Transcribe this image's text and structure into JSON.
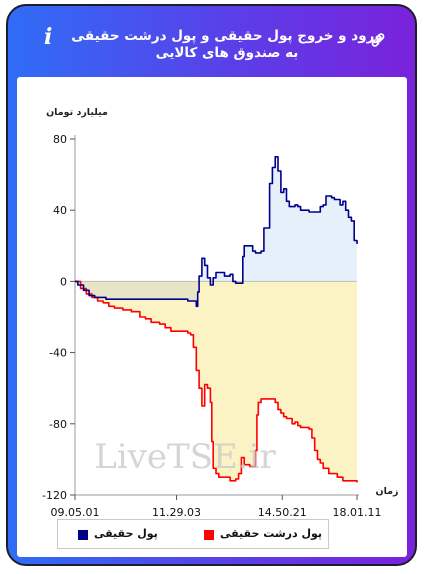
{
  "header": {
    "title": "ورود و خروج پول حقیقی و پول درشت حقیقی به صندوق های کالایی",
    "info_glyph": "i",
    "icons": [
      "info-icon",
      "link-icon"
    ]
  },
  "watermark": "LiveTSE.ir",
  "chart_data": {
    "type": "line",
    "ylabel": "میلیارد تومان",
    "xlabel": "زمان",
    "ylim": [
      -120,
      80
    ],
    "yticks": [
      80,
      40,
      0,
      -40,
      -80,
      -120
    ],
    "xlim": [
      0,
      100
    ],
    "xticks": [
      {
        "pos": 0,
        "label": "09.05.01"
      },
      {
        "pos": 36,
        "label": "11.29.03"
      },
      {
        "pos": 73.5,
        "label": "14.50.21"
      },
      {
        "pos": 100,
        "label": "18.01.11"
      }
    ],
    "legend_position": "bottom",
    "series": [
      {
        "name": "پول حقیقی",
        "color": "#00008b",
        "fill_positive": "#e6f0fa",
        "fill_negative": "#e8e4c6",
        "points": [
          [
            0,
            0
          ],
          [
            1,
            -2
          ],
          [
            3,
            -5
          ],
          [
            5,
            -8
          ],
          [
            7,
            -9
          ],
          [
            11,
            -10
          ],
          [
            16,
            -10
          ],
          [
            21,
            -10
          ],
          [
            26,
            -10
          ],
          [
            29,
            -10
          ],
          [
            33,
            -10
          ],
          [
            37,
            -10
          ],
          [
            40,
            -11
          ],
          [
            42,
            -11
          ],
          [
            43,
            -14
          ],
          [
            43.5,
            -6
          ],
          [
            44,
            3
          ],
          [
            45,
            13
          ],
          [
            46,
            9
          ],
          [
            47,
            2
          ],
          [
            48,
            -2
          ],
          [
            49,
            2
          ],
          [
            50,
            5
          ],
          [
            53,
            3
          ],
          [
            55,
            4
          ],
          [
            56,
            0
          ],
          [
            57,
            -1
          ],
          [
            58,
            -1
          ],
          [
            59,
            -1
          ],
          [
            59.5,
            14
          ],
          [
            60,
            20
          ],
          [
            62,
            20
          ],
          [
            63,
            17
          ],
          [
            64,
            16
          ],
          [
            66,
            17
          ],
          [
            67,
            30
          ],
          [
            69,
            55
          ],
          [
            70,
            64
          ],
          [
            71,
            70
          ],
          [
            72,
            62
          ],
          [
            73,
            50
          ],
          [
            74,
            52
          ],
          [
            75,
            45
          ],
          [
            76,
            42
          ],
          [
            78,
            43
          ],
          [
            79,
            42
          ],
          [
            80,
            40
          ],
          [
            83,
            39
          ],
          [
            86,
            39
          ],
          [
            87,
            42
          ],
          [
            88,
            43
          ],
          [
            89,
            48
          ],
          [
            91,
            47
          ],
          [
            92,
            46
          ],
          [
            94,
            43
          ],
          [
            95,
            45
          ],
          [
            96,
            40
          ],
          [
            97,
            36
          ],
          [
            98,
            34
          ],
          [
            99,
            23
          ],
          [
            100,
            21
          ]
        ]
      },
      {
        "name": "پول درشت حقیقی",
        "color": "#ff0000",
        "fill_negative": "#fcf3c4",
        "points": [
          [
            0,
            0
          ],
          [
            2,
            -4
          ],
          [
            4,
            -7
          ],
          [
            6,
            -9
          ],
          [
            8,
            -11
          ],
          [
            10,
            -12
          ],
          [
            12,
            -14
          ],
          [
            14,
            -15
          ],
          [
            17,
            -16
          ],
          [
            20,
            -17
          ],
          [
            23,
            -20
          ],
          [
            25,
            -21
          ],
          [
            27,
            -23
          ],
          [
            30,
            -24
          ],
          [
            32,
            -26
          ],
          [
            34,
            -28
          ],
          [
            36,
            -28
          ],
          [
            39,
            -28
          ],
          [
            40,
            -29
          ],
          [
            41,
            -30
          ],
          [
            42,
            -37
          ],
          [
            43,
            -50
          ],
          [
            44,
            -60
          ],
          [
            45,
            -70
          ],
          [
            46,
            -58
          ],
          [
            47,
            -60
          ],
          [
            48,
            -68
          ],
          [
            48.5,
            -90
          ],
          [
            49,
            -105
          ],
          [
            50,
            -108
          ],
          [
            51,
            -110
          ],
          [
            53,
            -110
          ],
          [
            55,
            -112
          ],
          [
            57,
            -111
          ],
          [
            58,
            -108
          ],
          [
            59,
            -99
          ],
          [
            60,
            -103
          ],
          [
            62,
            -104
          ],
          [
            63,
            -104
          ],
          [
            64,
            -95
          ],
          [
            64.5,
            -75
          ],
          [
            65,
            -68
          ],
          [
            66,
            -66
          ],
          [
            68,
            -66
          ],
          [
            70,
            -66
          ],
          [
            71,
            -68
          ],
          [
            72,
            -72
          ],
          [
            73,
            -74
          ],
          [
            74,
            -76
          ],
          [
            75,
            -77
          ],
          [
            76,
            -77
          ],
          [
            77,
            -80
          ],
          [
            78,
            -79
          ],
          [
            79,
            -81
          ],
          [
            80,
            -82
          ],
          [
            82,
            -82
          ],
          [
            83,
            -83
          ],
          [
            84,
            -88
          ],
          [
            85,
            -95
          ],
          [
            86,
            -100
          ],
          [
            87,
            -102
          ],
          [
            88,
            -105
          ],
          [
            90,
            -108
          ],
          [
            93,
            -110
          ],
          [
            95,
            -112
          ],
          [
            98,
            -112
          ],
          [
            100,
            -113
          ]
        ]
      }
    ]
  }
}
